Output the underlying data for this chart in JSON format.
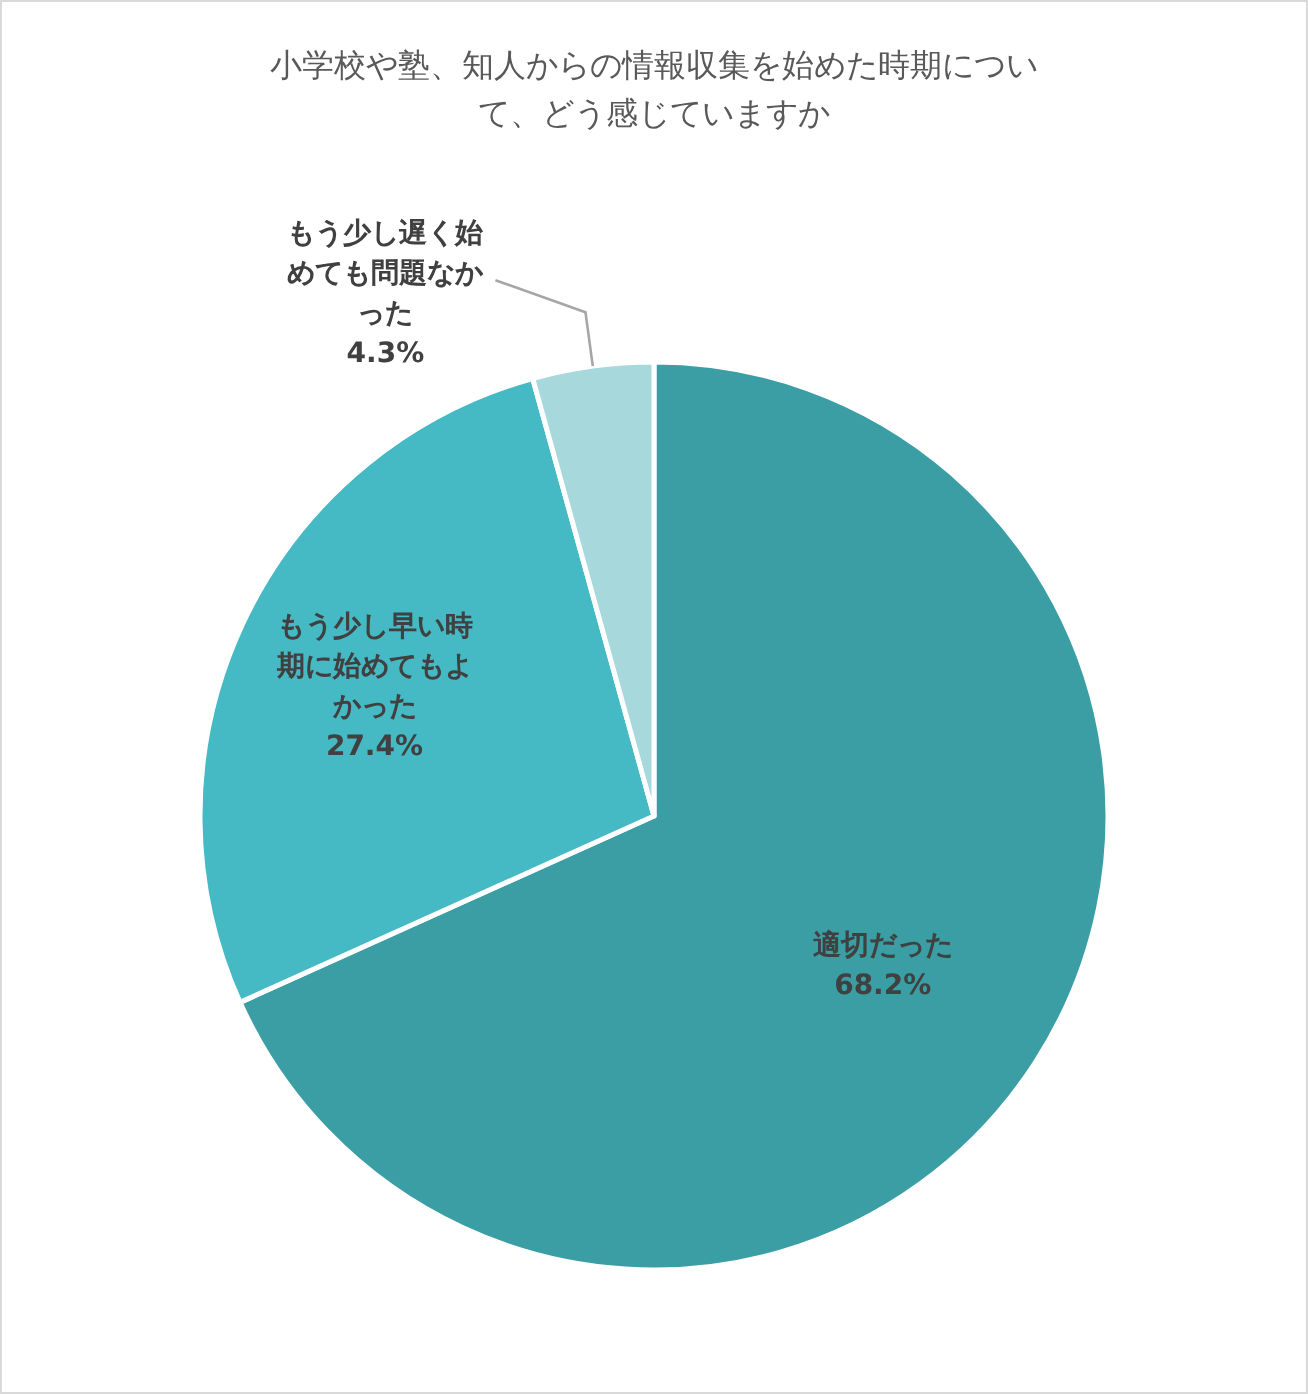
{
  "chart_data": {
    "type": "pie",
    "title": "小学校や塾、知人からの情報収集を始めた時期について、どう感じていますか",
    "categories": [
      "適切だった",
      "もう少し早い時期に始めてもよかった",
      "もう少し遅く始めても問題なかった"
    ],
    "values": [
      68.2,
      27.4,
      4.3
    ],
    "colors": [
      "#3a9ea4",
      "#45b9c4",
      "#a6d8dc"
    ],
    "value_labels": [
      "68.2%",
      "27.4%",
      "4.3%"
    ]
  }
}
